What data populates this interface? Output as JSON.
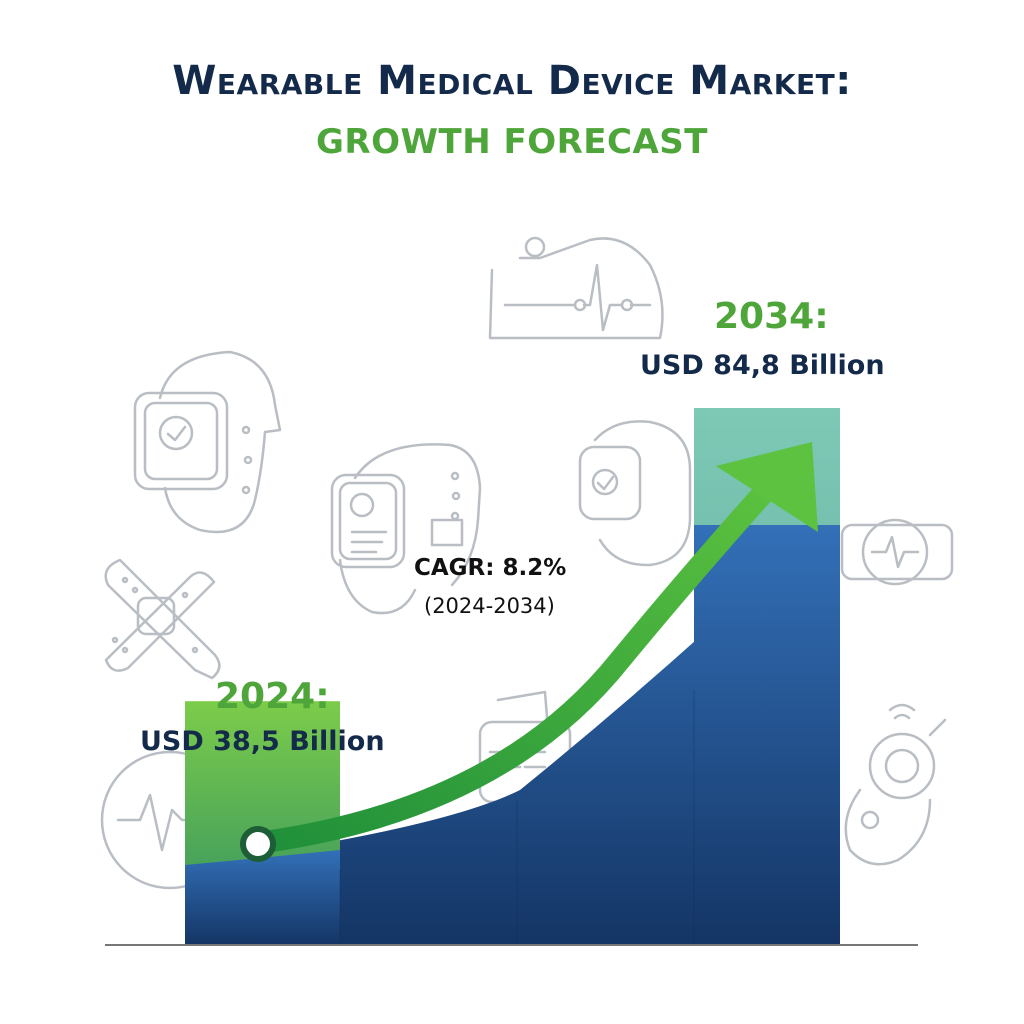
{
  "chart_data": {
    "type": "bar",
    "title": "Wearable Medical Device Market:",
    "subtitle": "GROWTH FORECAST",
    "categories": [
      "2024",
      "",
      "",
      "2034"
    ],
    "values": [
      38.5,
      null,
      null,
      84.8
    ],
    "ylim": [
      0,
      100
    ],
    "grid": false,
    "annotations": {
      "start_year": "2024:",
      "start_value": "USD 38,5 Billion",
      "end_year": "2034:",
      "end_value": "USD 84,8 Billion",
      "cagr": "CAGR: 8.2%",
      "cagr_period": "(2024-2034)"
    }
  },
  "colors": {
    "title": "#142a4a",
    "accent_green": "#4ea53a",
    "bar_blue_dark": "#143565",
    "bar_blue_light": "#3370b8",
    "bar_green": "#7ccc4a",
    "bar_teal": "#7ec8b6",
    "axis": "#777777",
    "icon_stroke": "#b9bec4"
  },
  "icons": [
    "smartwatch-icon",
    "ecg-patch-icon",
    "fitness-band-icon",
    "medical-patch-icon",
    "wrist-tracker-icon",
    "heart-monitor-watch-icon",
    "heartbeat-circle-icon",
    "digital-watch-icon",
    "hearing-aid-icon"
  ]
}
